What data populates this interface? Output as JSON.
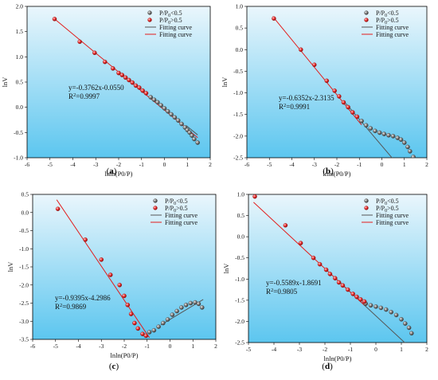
{
  "chart_data": [
    {
      "id": "a",
      "type": "scatter",
      "caption": "(a)",
      "xlabel": "lnln(P0/P)",
      "ylabel": "lnV",
      "xlim": [
        -6,
        2
      ],
      "ylim": [
        -1.0,
        2.0
      ],
      "xticks": [
        "-6",
        "-5",
        "-4",
        "-3",
        "-2",
        "-1",
        "0",
        "1",
        "2"
      ],
      "yticks": [
        "-1.0",
        "-0.5",
        "0.0",
        "0.5",
        "1.0",
        "1.5",
        "2.0"
      ],
      "legend": [
        "P/P0<0.5",
        "P/P0>0.5",
        "Fitting curve",
        "Fitting curve"
      ],
      "equation": [
        "y=-0.3762x-0.0550",
        "R2=0.9997"
      ],
      "series": [
        {
          "points": [
            [
              -4.8,
              1.75
            ],
            [
              -3.7,
              1.3
            ],
            [
              -3.05,
              1.08
            ],
            [
              -2.6,
              0.9
            ],
            [
              -2.25,
              0.77
            ],
            [
              -2.0,
              0.68
            ],
            [
              -1.85,
              0.64
            ],
            [
              -1.7,
              0.59
            ],
            [
              -1.55,
              0.54
            ],
            [
              -1.4,
              0.49
            ],
            [
              -1.25,
              0.43
            ],
            [
              -1.1,
              0.39
            ],
            [
              -0.95,
              0.33
            ],
            [
              -0.8,
              0.28
            ]
          ]
        },
        {
          "points": [
            [
              -0.6,
              0.2
            ],
            [
              -0.45,
              0.15
            ],
            [
              -0.3,
              0.1
            ],
            [
              -0.15,
              0.04
            ],
            [
              0.0,
              -0.02
            ],
            [
              0.15,
              -0.08
            ],
            [
              0.3,
              -0.14
            ],
            [
              0.45,
              -0.2
            ],
            [
              0.6,
              -0.26
            ],
            [
              0.75,
              -0.33
            ],
            [
              0.9,
              -0.4
            ],
            [
              1.0,
              -0.45
            ],
            [
              1.1,
              -0.5
            ],
            [
              1.2,
              -0.56
            ],
            [
              1.3,
              -0.63
            ],
            [
              1.45,
              -0.7
            ]
          ]
        }
      ],
      "fits": [
        {
          "x": [
            -4.8,
            1.45
          ]
        },
        {
          "x": [
            0.95,
            1.45
          ]
        }
      ]
    },
    {
      "id": "b",
      "type": "scatter",
      "caption": "(b)",
      "xlabel": "lnln(P0/P)",
      "ylabel": "lnV",
      "xlim": [
        -6,
        2
      ],
      "ylim": [
        -2.5,
        1.0
      ],
      "xticks": [
        "-6",
        "-5",
        "-4",
        "-3",
        "-2",
        "-1",
        "0",
        "1",
        "2"
      ],
      "yticks": [
        "-2.5",
        "-2.0",
        "-1.5",
        "-1.0",
        "-0.5",
        "0.0",
        "0.5",
        "1.0"
      ],
      "legend": [
        "P/P0<0.5",
        "P/P0>0.5",
        "Fitting curve",
        "Fitting curve"
      ],
      "equation": [
        "y=-0.6352x-2.3135",
        "R2=0.9991"
      ],
      "series": [
        {
          "points": [
            [
              -4.8,
              0.72
            ],
            [
              -3.6,
              0.0
            ],
            [
              -3.0,
              -0.35
            ],
            [
              -2.45,
              -0.72
            ],
            [
              -2.1,
              -0.95
            ],
            [
              -1.9,
              -1.08
            ],
            [
              -1.7,
              -1.22
            ],
            [
              -1.5,
              -1.33
            ],
            [
              -1.3,
              -1.45
            ],
            [
              -1.1,
              -1.55
            ]
          ]
        },
        {
          "points": [
            [
              -0.9,
              -1.65
            ],
            [
              -0.7,
              -1.75
            ],
            [
              -0.5,
              -1.82
            ],
            [
              -0.3,
              -1.88
            ],
            [
              -0.1,
              -1.92
            ],
            [
              0.1,
              -1.95
            ],
            [
              0.3,
              -1.98
            ],
            [
              0.5,
              -2.0
            ],
            [
              0.7,
              -2.04
            ],
            [
              0.85,
              -2.08
            ],
            [
              1.0,
              -2.15
            ],
            [
              1.15,
              -2.25
            ],
            [
              1.25,
              -2.35
            ],
            [
              1.4,
              -2.48
            ]
          ]
        }
      ],
      "fits": [
        {
          "x": [
            -4.85,
            -0.9
          ]
        },
        {
          "x": [
            -1.6,
            1.4
          ]
        }
      ]
    },
    {
      "id": "c",
      "type": "scatter",
      "caption": "(c)",
      "xlabel": "lnln(P0/P)",
      "ylabel": "lnV",
      "xlim": [
        -6,
        2
      ],
      "ylim": [
        -3.5,
        0.5
      ],
      "xticks": [
        "-6",
        "-5",
        "-4",
        "-3",
        "-2",
        "-1",
        "0",
        "1",
        "2"
      ],
      "yticks": [
        "-3.5",
        "-3.0",
        "-2.5",
        "-2.0",
        "-1.5",
        "-1.0",
        "-0.5",
        "0.0",
        "0.5"
      ],
      "legend": [
        "P/P0<0.5",
        "P/P0>0.5",
        "Fitting curve",
        "Fitting curve"
      ],
      "equation": [
        "y=-0.9395x-4.2986",
        "R2=0.9869"
      ],
      "series": [
        {
          "points": [
            [
              -0.9,
              -3.3
            ],
            [
              -0.7,
              -3.25
            ],
            [
              -0.5,
              -3.15
            ],
            [
              -0.3,
              -3.05
            ],
            [
              -0.1,
              -2.95
            ],
            [
              0.1,
              -2.82
            ],
            [
              0.3,
              -2.72
            ],
            [
              0.5,
              -2.62
            ],
            [
              0.7,
              -2.55
            ],
            [
              0.9,
              -2.5
            ],
            [
              1.1,
              -2.48
            ],
            [
              1.25,
              -2.52
            ],
            [
              1.4,
              -2.62
            ]
          ]
        },
        {
          "points": [
            [
              -4.9,
              0.1
            ],
            [
              -3.7,
              -0.75
            ],
            [
              -3.0,
              -1.3
            ],
            [
              -2.6,
              -1.72
            ],
            [
              -2.2,
              -2.0
            ],
            [
              -2.0,
              -2.3
            ],
            [
              -1.85,
              -2.55
            ],
            [
              -1.7,
              -2.8
            ],
            [
              -1.55,
              -3.05
            ],
            [
              -1.4,
              -3.2
            ],
            [
              -1.2,
              -3.35
            ],
            [
              -1.05,
              -3.4
            ]
          ]
        }
      ],
      "fits": [
        {
          "x": [
            -0.4,
            1.45
          ],
          "y": [
            -3.1,
            -2.4
          ]
        },
        {
          "x": [
            -4.95,
            -0.9
          ]
        }
      ]
    },
    {
      "id": "d",
      "type": "scatter",
      "caption": "(d)",
      "xlabel": "lnln(P0/P)",
      "ylabel": "lnV",
      "xlim": [
        -5,
        2
      ],
      "ylim": [
        -2.5,
        1.0
      ],
      "xticks": [
        "-5",
        "-4",
        "-3",
        "-2",
        "-1",
        "0",
        "1",
        "2"
      ],
      "yticks": [
        "-2.5",
        "-2.0",
        "-1.5",
        "-1.0",
        "-0.5",
        "0.0",
        "0.5",
        "1.0"
      ],
      "legend": [
        "P/P0<0.5",
        "P/P0>0.5",
        "Fitting curve",
        "Fitting curve"
      ],
      "equation": [
        "y=-0.5589x-1.8691",
        "R2=0.9805"
      ],
      "series": [
        {
          "points": [
            [
              -0.4,
              -1.58
            ],
            [
              -0.2,
              -1.62
            ],
            [
              0.0,
              -1.65
            ],
            [
              0.2,
              -1.68
            ],
            [
              0.4,
              -1.72
            ],
            [
              0.6,
              -1.78
            ],
            [
              0.8,
              -1.85
            ],
            [
              1.0,
              -1.95
            ],
            [
              1.15,
              -2.05
            ],
            [
              1.3,
              -2.15
            ],
            [
              1.4,
              -2.28
            ]
          ]
        },
        {
          "points": [
            [
              -4.75,
              0.95
            ],
            [
              -3.55,
              0.27
            ],
            [
              -2.95,
              -0.15
            ],
            [
              -2.45,
              -0.5
            ],
            [
              -2.2,
              -0.65
            ],
            [
              -1.95,
              -0.78
            ],
            [
              -1.8,
              -0.88
            ],
            [
              -1.6,
              -0.98
            ],
            [
              -1.45,
              -1.08
            ],
            [
              -1.3,
              -1.15
            ],
            [
              -1.1,
              -1.25
            ],
            [
              -0.9,
              -1.35
            ],
            [
              -0.75,
              -1.42
            ],
            [
              -0.6,
              -1.48
            ],
            [
              -0.45,
              -1.53
            ]
          ]
        }
      ],
      "fits": [
        {
          "x": [
            -1.5,
            1.45
          ]
        },
        {
          "x": [
            -4.8,
            -0.45
          ]
        }
      ]
    }
  ],
  "style": {
    "plot_bg_top": "#eaf6fc",
    "plot_bg_bottom": "#5cc6ef",
    "gray_marker": "#7a7a7a",
    "red_marker": "#e62a2a",
    "gray_line": "#555555",
    "red_line": "#e31b1b"
  }
}
